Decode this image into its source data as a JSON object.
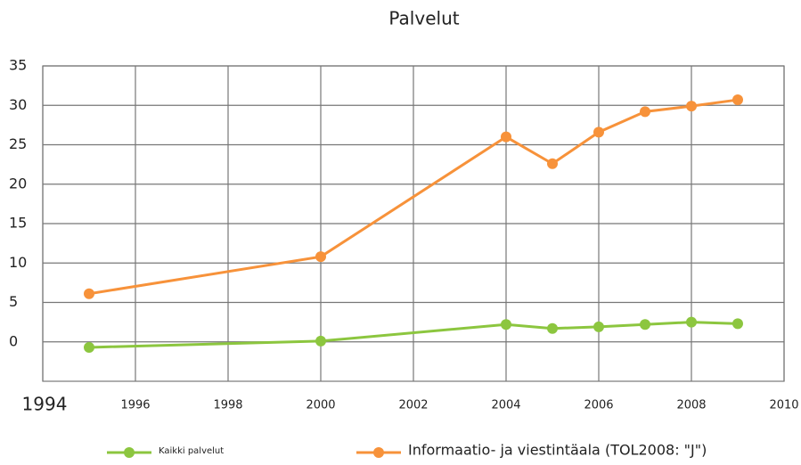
{
  "chart_data": {
    "type": "line",
    "title": "Palvelut",
    "x": [
      1995,
      2000,
      2004,
      2005,
      2006,
      2007,
      2008,
      2009
    ],
    "series": [
      {
        "name": "Kaikki palvelut",
        "color": "#8cc63f",
        "values": [
          -0.7,
          0.1,
          2.2,
          1.7,
          1.9,
          2.2,
          2.5,
          2.3
        ]
      },
      {
        "name": "Informaatio- ja viestintäala (TOL2008: \"J\")",
        "color": "#f7923a",
        "values": [
          6.1,
          10.8,
          26,
          22.6,
          26.6,
          29.2,
          29.9,
          30.7
        ]
      }
    ],
    "xlim": [
      1994,
      2010
    ],
    "xticks": [
      1994,
      1996,
      1998,
      2000,
      2002,
      2004,
      2006,
      2008,
      2010
    ],
    "ylim": [
      -5,
      35
    ],
    "yticks": [
      0,
      5,
      10,
      15,
      20,
      25,
      30,
      35
    ],
    "grid": true,
    "legend": "bottom"
  }
}
